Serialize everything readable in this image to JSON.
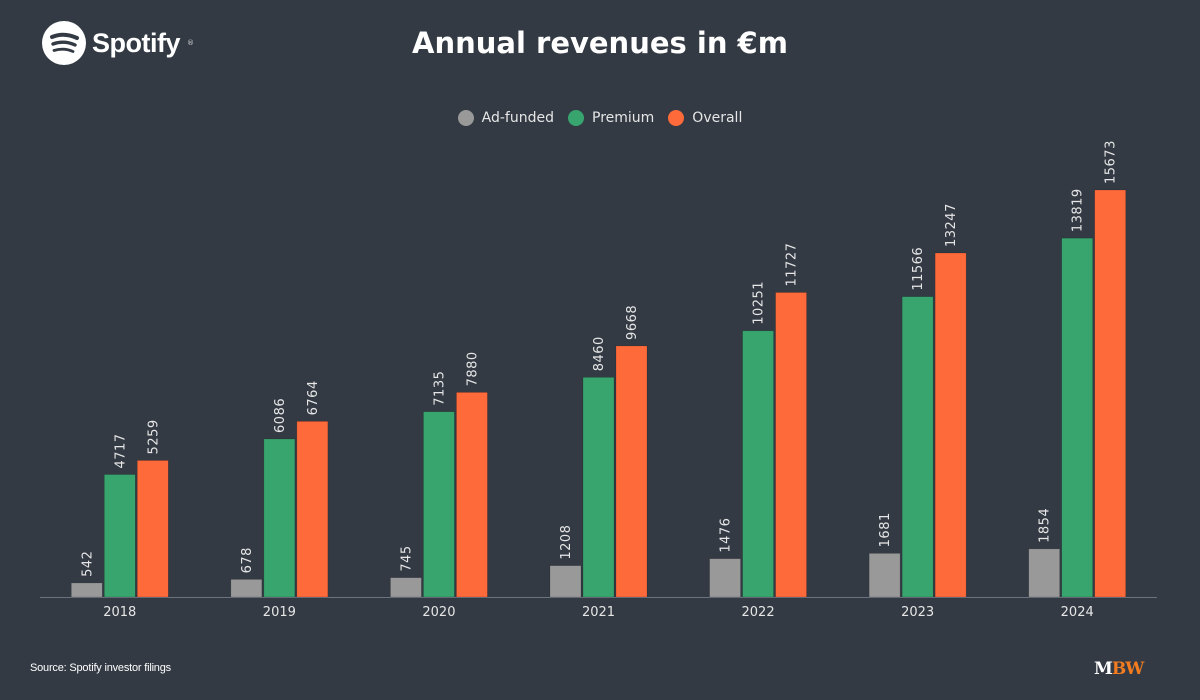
{
  "header": {
    "brand": "Spotify",
    "brand_icon": "spotify-logo-icon",
    "title": "Annual revenues in €m"
  },
  "footer": {
    "source": "Source: Spotify investor filings",
    "publisher_logo": {
      "part1": "M",
      "part2": "BW"
    }
  },
  "colors": {
    "background": "#333a44",
    "ad_funded": "#999999",
    "premium": "#38a56e",
    "overall": "#ff6a3a",
    "axis": "#6b7380",
    "label": "#e6e6e6"
  },
  "chart_data": {
    "type": "bar",
    "title": "Annual revenues in €m",
    "xlabel": "",
    "ylabel": "",
    "categories": [
      "2018",
      "2019",
      "2020",
      "2021",
      "2022",
      "2023",
      "2024"
    ],
    "series": [
      {
        "name": "Ad-funded",
        "color": "#999999",
        "values": [
          542,
          678,
          745,
          1208,
          1476,
          1681,
          1854
        ]
      },
      {
        "name": "Premium",
        "color": "#38a56e",
        "values": [
          4717,
          6086,
          7135,
          8460,
          10251,
          11566,
          13819
        ]
      },
      {
        "name": "Overall",
        "color": "#ff6a3a",
        "values": [
          5259,
          6764,
          7880,
          9668,
          11727,
          13247,
          15673
        ]
      }
    ],
    "ylim": [
      0,
      15673
    ],
    "grid": false,
    "y_axis_visible": false,
    "data_labels": true,
    "data_label_rotation": "vertical",
    "legend_placement": "top-center"
  }
}
